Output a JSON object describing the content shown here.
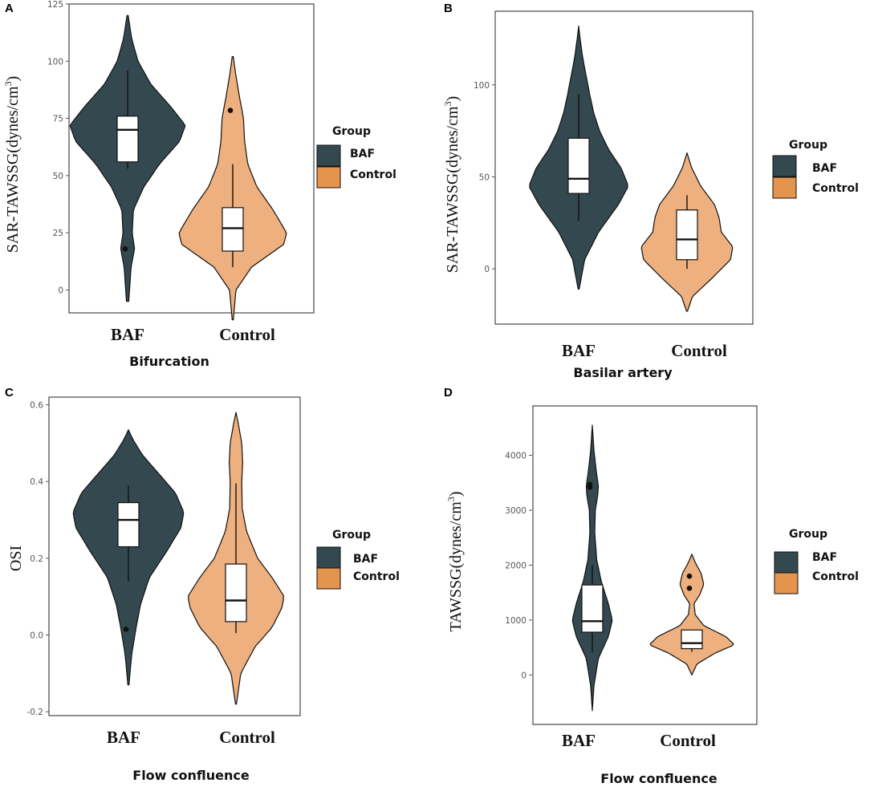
{
  "figure": {
    "colors": {
      "BAF": "#34494f",
      "Control": "#edb07e",
      "Control_legend": "#e5944e",
      "box": "#ffffff",
      "outline": "#111111"
    }
  },
  "chart_data": [
    {
      "panel": "A",
      "type": "violin",
      "xlabel": "Bifurcation",
      "ylabel": "SAR-TAWSSG(dynes/cm",
      "ylabel_sup": "3",
      "ylabel_close": ")",
      "ylim": [
        -10,
        125
      ],
      "yticks": [
        "0",
        "25",
        "50",
        "75",
        "100",
        "125"
      ],
      "categories": [
        "BAF",
        "Control"
      ],
      "legend": {
        "title": "Group",
        "labels": [
          "BAF",
          "Control"
        ]
      },
      "groups": [
        {
          "name": "BAF",
          "violin_range": [
            -5,
            120
          ],
          "max_width_at": 72,
          "profile": [
            [
              -5,
              0.02
            ],
            [
              10,
              0.06
            ],
            [
              18,
              0.12
            ],
            [
              25,
              0.08
            ],
            [
              35,
              0.1
            ],
            [
              45,
              0.28
            ],
            [
              55,
              0.55
            ],
            [
              65,
              0.9
            ],
            [
              72,
              1.0
            ],
            [
              80,
              0.75
            ],
            [
              90,
              0.4
            ],
            [
              100,
              0.18
            ],
            [
              110,
              0.07
            ],
            [
              120,
              0.01
            ]
          ],
          "box": {
            "q1": 56,
            "median": 70,
            "q3": 76,
            "whisker_low": 53,
            "whisker_high": 96
          },
          "outliers": [
            18
          ]
        },
        {
          "name": "Control",
          "violin_range": [
            -13,
            102
          ],
          "max_width_at": 25,
          "profile": [
            [
              -13,
              0.01
            ],
            [
              0,
              0.06
            ],
            [
              10,
              0.35
            ],
            [
              20,
              0.95
            ],
            [
              25,
              1.0
            ],
            [
              35,
              0.75
            ],
            [
              45,
              0.45
            ],
            [
              55,
              0.28
            ],
            [
              65,
              0.22
            ],
            [
              75,
              0.2
            ],
            [
              85,
              0.12
            ],
            [
              95,
              0.05
            ],
            [
              102,
              0.01
            ]
          ],
          "box": {
            "q1": 17,
            "median": 27,
            "q3": 36,
            "whisker_low": 10,
            "whisker_high": 55
          },
          "outliers": [
            78.5
          ]
        }
      ]
    },
    {
      "panel": "B",
      "type": "violin",
      "xlabel": "Basilar artery",
      "ylabel": "SAR-TAWSSG(dynes/cm",
      "ylabel_sup": "3",
      "ylabel_close": ")",
      "ylim": [
        -30,
        140
      ],
      "yticks": [
        "0",
        "50",
        "100"
      ],
      "categories": [
        "BAF",
        "Control"
      ],
      "legend": {
        "title": "Group",
        "labels": [
          "BAF",
          "Control"
        ]
      },
      "groups": [
        {
          "name": "BAF",
          "violin_range": [
            -11,
            132
          ],
          "profile": [
            [
              -11,
              0.01
            ],
            [
              5,
              0.12
            ],
            [
              20,
              0.4
            ],
            [
              35,
              0.8
            ],
            [
              45,
              1.0
            ],
            [
              55,
              0.85
            ],
            [
              65,
              0.6
            ],
            [
              75,
              0.42
            ],
            [
              85,
              0.3
            ],
            [
              95,
              0.22
            ],
            [
              105,
              0.15
            ],
            [
              115,
              0.08
            ],
            [
              125,
              0.03
            ],
            [
              132,
              0.0
            ]
          ],
          "box": {
            "q1": 41,
            "median": 49,
            "q3": 71,
            "whisker_low": 26,
            "whisker_high": 95
          },
          "outliers": []
        },
        {
          "name": "Control",
          "violin_range": [
            -23,
            63
          ],
          "profile": [
            [
              -23,
              0.01
            ],
            [
              -15,
              0.12
            ],
            [
              -5,
              0.55
            ],
            [
              5,
              0.95
            ],
            [
              12,
              1.0
            ],
            [
              20,
              0.75
            ],
            [
              28,
              0.7
            ],
            [
              35,
              0.6
            ],
            [
              45,
              0.3
            ],
            [
              55,
              0.1
            ],
            [
              63,
              0.0
            ]
          ],
          "box": {
            "q1": 5,
            "median": 16,
            "q3": 32,
            "whisker_low": 0,
            "whisker_high": 40
          },
          "outliers": []
        }
      ]
    },
    {
      "panel": "C",
      "type": "violin",
      "xlabel": "Flow confluence",
      "ylabel": "OSI",
      "ylim": [
        -0.21,
        0.62
      ],
      "yticks": [
        "-0.2",
        "0.0",
        "0.2",
        "0.4",
        "0.6"
      ],
      "categories": [
        "BAF",
        "Control"
      ],
      "legend": {
        "title": "Group",
        "labels": [
          "BAF",
          "Control"
        ]
      },
      "groups": [
        {
          "name": "BAF",
          "violin_range": [
            -0.13,
            0.535
          ],
          "profile": [
            [
              -0.13,
              0.01
            ],
            [
              -0.05,
              0.06
            ],
            [
              0.02,
              0.14
            ],
            [
              0.08,
              0.22
            ],
            [
              0.15,
              0.38
            ],
            [
              0.22,
              0.7
            ],
            [
              0.28,
              0.95
            ],
            [
              0.32,
              1.0
            ],
            [
              0.37,
              0.85
            ],
            [
              0.42,
              0.55
            ],
            [
              0.47,
              0.25
            ],
            [
              0.51,
              0.08
            ],
            [
              0.535,
              0.0
            ]
          ],
          "box": {
            "q1": 0.23,
            "median": 0.3,
            "q3": 0.345,
            "whisker_low": 0.14,
            "whisker_high": 0.39
          },
          "outliers": [
            0.015
          ]
        },
        {
          "name": "Control",
          "violin_range": [
            -0.18,
            0.58
          ],
          "profile": [
            [
              -0.18,
              0.01
            ],
            [
              -0.1,
              0.1
            ],
            [
              -0.03,
              0.4
            ],
            [
              0.02,
              0.75
            ],
            [
              0.07,
              0.95
            ],
            [
              0.1,
              1.0
            ],
            [
              0.15,
              0.75
            ],
            [
              0.2,
              0.45
            ],
            [
              0.27,
              0.22
            ],
            [
              0.33,
              0.13
            ],
            [
              0.4,
              0.12
            ],
            [
              0.45,
              0.14
            ],
            [
              0.5,
              0.12
            ],
            [
              0.55,
              0.05
            ],
            [
              0.58,
              0.0
            ]
          ],
          "box": {
            "q1": 0.035,
            "median": 0.09,
            "q3": 0.185,
            "whisker_low": 0.005,
            "whisker_high": 0.395
          },
          "outliers": []
        }
      ]
    },
    {
      "panel": "D",
      "type": "violin",
      "xlabel": "Flow confluence",
      "ylabel": "TAWSSG(dynes/cm",
      "ylabel_sup": "3",
      "ylabel_close": ")",
      "ylim": [
        -900,
        4900
      ],
      "yticks": [
        "0",
        "1000",
        "2000",
        "3000",
        "4000"
      ],
      "categories": [
        "BAF",
        "Control"
      ],
      "legend": {
        "title": "Group",
        "labels": [
          "BAF",
          "Control"
        ]
      },
      "groups": [
        {
          "name": "BAF",
          "violin_range": [
            -650,
            4550
          ],
          "profile": [
            [
              -650,
              0.0
            ],
            [
              -200,
              0.08
            ],
            [
              300,
              0.3
            ],
            [
              700,
              0.8
            ],
            [
              1000,
              1.0
            ],
            [
              1300,
              0.8
            ],
            [
              1700,
              0.45
            ],
            [
              2100,
              0.22
            ],
            [
              2600,
              0.12
            ],
            [
              3000,
              0.15
            ],
            [
              3300,
              0.28
            ],
            [
              3450,
              0.3
            ],
            [
              3700,
              0.2
            ],
            [
              4100,
              0.08
            ],
            [
              4550,
              0.0
            ]
          ],
          "box": {
            "q1": 780,
            "median": 980,
            "q3": 1640,
            "whisker_low": 420,
            "whisker_high": 2000
          },
          "outliers": [
            3420,
            3470
          ]
        },
        {
          "name": "Control",
          "violin_range": [
            0,
            2200
          ],
          "profile": [
            [
              0,
              0.0
            ],
            [
              200,
              0.12
            ],
            [
              400,
              0.55
            ],
            [
              550,
              1.0
            ],
            [
              700,
              0.8
            ],
            [
              900,
              0.28
            ],
            [
              1100,
              0.08
            ],
            [
              1300,
              0.05
            ],
            [
              1450,
              0.18
            ],
            [
              1650,
              0.28
            ],
            [
              1850,
              0.22
            ],
            [
              2050,
              0.08
            ],
            [
              2200,
              0.0
            ]
          ],
          "box": {
            "q1": 480,
            "median": 580,
            "q3": 820,
            "whisker_low": 420,
            "whisker_high": 820
          },
          "outliers": [
            1580,
            1800
          ]
        }
      ]
    }
  ]
}
